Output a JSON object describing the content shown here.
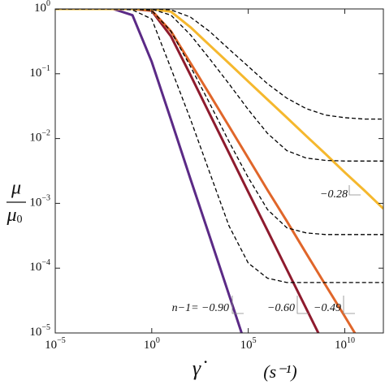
{
  "chart_data": {
    "type": "line",
    "log_x": true,
    "log_y": true,
    "xlabel": "γ̇",
    "xunit": "(s⁻¹)",
    "ylabel": {
      "numerator": "μ",
      "denominator": "μ",
      "denominator_sub": "0"
    },
    "xlim": [
      1e-05,
      1000000000000.0
    ],
    "ylim": [
      1e-05,
      1
    ],
    "xticks": [
      {
        "value": 1e-05,
        "label": "10",
        "exponent": "−5"
      },
      {
        "value": 1,
        "label": "10",
        "exponent": "0"
      },
      {
        "value": 100000.0,
        "label": "10",
        "exponent": "5"
      },
      {
        "value": 10000000000.0,
        "label": "10",
        "exponent": "10"
      }
    ],
    "yticks": [
      {
        "value": 1e-05,
        "label": "10",
        "exponent": "−5"
      },
      {
        "value": 0.0001,
        "label": "10",
        "exponent": "−4"
      },
      {
        "value": 0.001,
        "label": "10",
        "exponent": "−3"
      },
      {
        "value": 0.01,
        "label": "10",
        "exponent": "−2"
      },
      {
        "value": 0.1,
        "label": "10",
        "exponent": "−1"
      },
      {
        "value": 1,
        "label": "10",
        "exponent": "0"
      }
    ],
    "x": [
      1e-05,
      0.0001,
      0.001,
      0.01,
      0.1,
      1,
      10,
      100,
      1000,
      10000.0,
      100000.0,
      1000000.0,
      10000000.0,
      100000000.0,
      1000000000.0,
      10000000000.0,
      100000000000.0,
      1000000000000.0
    ],
    "series": [
      {
        "color": "#5b2a86",
        "dashed": false,
        "values": [
          1,
          1,
          1,
          1,
          0.8,
          0.153,
          0.0194,
          0.0024,
          0.00031,
          3.9e-05,
          4.9e-06,
          null,
          null,
          null,
          null,
          null,
          null,
          null
        ]
      },
      {
        "color": "#8e1b2e",
        "dashed": false,
        "values": [
          1,
          1,
          1,
          1,
          1,
          0.935,
          0.376,
          0.096,
          0.024,
          0.006,
          0.0015,
          0.00038,
          9.5e-05,
          2.4e-05,
          6e-06,
          null,
          null,
          null
        ]
      },
      {
        "color": "#e0662a",
        "dashed": false,
        "values": [
          1,
          1,
          1,
          1,
          1,
          0.947,
          0.45,
          0.147,
          0.048,
          0.0155,
          0.005,
          0.0016,
          0.00053,
          0.00017,
          5.5e-05,
          1.8e-05,
          5.8e-06,
          null
        ]
      },
      {
        "color": "#f5b82e",
        "dashed": false,
        "values": [
          1,
          1,
          1,
          1,
          1,
          1,
          0.907,
          0.524,
          0.275,
          0.145,
          0.076,
          0.04,
          0.021,
          0.011,
          0.0058,
          0.003,
          0.0016,
          0.00083
        ]
      },
      {
        "color": "#000000",
        "dashed": true,
        "values": [
          1,
          1,
          1,
          1,
          1,
          1,
          0.97,
          0.75,
          0.45,
          0.24,
          0.13,
          0.07,
          0.042,
          0.029,
          0.023,
          0.021,
          0.02,
          0.02
        ]
      },
      {
        "color": "#000000",
        "dashed": true,
        "values": [
          1,
          1,
          1,
          1,
          1,
          0.99,
          0.8,
          0.4,
          0.17,
          0.07,
          0.028,
          0.012,
          0.0065,
          0.005,
          0.0046,
          0.0045,
          0.0045,
          0.0045
        ]
      },
      {
        "color": "#000000",
        "dashed": true,
        "values": [
          1,
          1,
          1,
          1,
          1,
          0.95,
          0.45,
          0.13,
          0.035,
          0.009,
          0.0025,
          0.0008,
          0.00042,
          0.00035,
          0.00033,
          0.00033,
          0.00033,
          0.00033
        ]
      },
      {
        "color": "#000000",
        "dashed": true,
        "values": [
          1,
          1,
          1,
          1,
          0.97,
          0.7,
          0.12,
          0.02,
          0.003,
          0.00045,
          0.00012,
          7e-05,
          6e-05,
          6e-05,
          6e-05,
          6e-05,
          6e-05,
          6e-05
        ]
      }
    ],
    "annotations": [
      "n−1= −0.90",
      "−0.60",
      "−0.49",
      "−0.28"
    ]
  }
}
